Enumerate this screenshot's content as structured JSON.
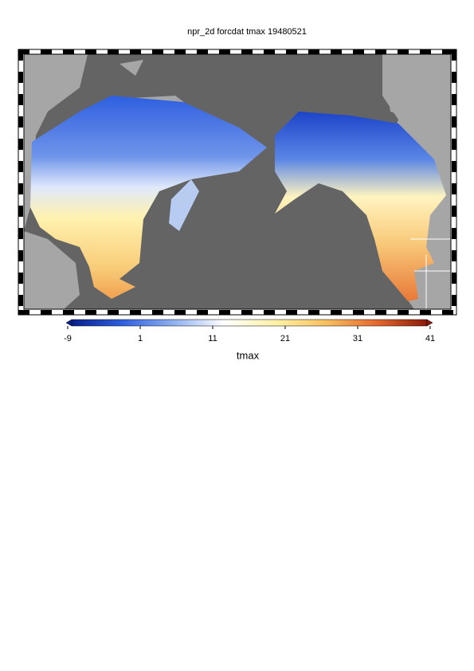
{
  "title": "npr_2d forcdat tmax 19480521",
  "colorbar": {
    "label": "tmax",
    "min": -9,
    "max": 41,
    "ticks": [
      -9,
      1,
      11,
      21,
      31,
      41
    ],
    "colors": [
      "#08208c",
      "#2f5fe0",
      "#8fb0f0",
      "#ffffff",
      "#fff2a8",
      "#f8c060",
      "#e56a30",
      "#8c1a08"
    ]
  }
}
